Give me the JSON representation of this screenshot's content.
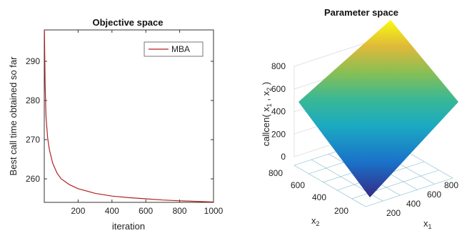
{
  "chart_data": [
    {
      "type": "line",
      "title": "Objective space",
      "xlabel": "iteration",
      "ylabel": "Best call time obtained so far",
      "xlim": [
        0,
        1000
      ],
      "ylim": [
        254,
        298
      ],
      "xticks": [
        "200",
        "400",
        "600",
        "800",
        "1000"
      ],
      "yticks": [
        "260",
        "270",
        "280",
        "290"
      ],
      "legend_position": "top-right",
      "grid": false,
      "series": [
        {
          "name": "MBA",
          "color": "#b22222",
          "x": [
            1,
            5,
            10,
            20,
            30,
            50,
            75,
            100,
            150,
            200,
            300,
            400,
            500,
            600,
            700,
            800,
            900,
            1000
          ],
          "y": [
            298,
            284,
            276,
            270.5,
            267.5,
            264,
            261.5,
            260,
            258.5,
            257.5,
            256.3,
            255.6,
            255.2,
            254.9,
            254.6,
            254.4,
            254.25,
            254.1
          ]
        }
      ]
    },
    {
      "type": "surface",
      "title": "Parameter space",
      "zlabel": "callcen( x",
      "xlabel": "x",
      "ylabel": "x",
      "zlabel_sub1": "1",
      "zlabel_sep": " , x",
      "zlabel_sub2": "2",
      "zlabel_end": " )",
      "xlabel_sub": "1",
      "ylabel_sub": "2",
      "zticks": [
        "0",
        "200",
        "400",
        "600",
        "800"
      ],
      "x1ticks": [
        "200",
        "400",
        "600",
        "800"
      ],
      "x2ticks": [
        "200",
        "400",
        "600",
        "800"
      ],
      "zlim": [
        0,
        900
      ],
      "colormap": "parula",
      "grid": true
    }
  ]
}
